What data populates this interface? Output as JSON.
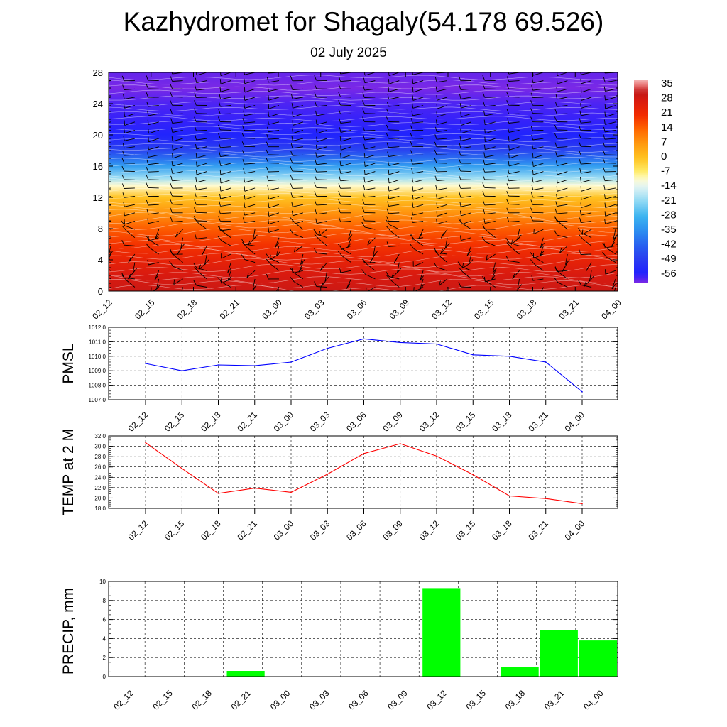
{
  "header": {
    "title": "Kazhydromet for Shagaly(54.178 69.526)",
    "subtitle": "02 July 2025"
  },
  "colors": {
    "pmsl_line": "#0000ff",
    "temp_line": "#ff0000",
    "precip_bar": "#00ff00",
    "grid": "#000000"
  },
  "chart_data": [
    {
      "type": "heatmap",
      "title": "",
      "x_categories": [
        "02_12",
        "02_15",
        "02_18",
        "02_21",
        "03_00",
        "03_03",
        "03_06",
        "03_09",
        "03_12",
        "03_15",
        "03_18",
        "03_21",
        "04_00"
      ],
      "y_ticks": [
        0,
        4,
        8,
        12,
        16,
        20,
        24,
        28
      ],
      "ylim": [
        0,
        28
      ],
      "colorbar_labels": [
        "35",
        "28",
        "21",
        "14",
        "7",
        "0",
        "-7",
        "-14",
        "-21",
        "-28",
        "-35",
        "-42",
        "-49",
        "-56"
      ],
      "colorbar_range": [
        -60,
        38
      ],
      "temperature_profile": {
        "levels": [
          0,
          2,
          4,
          6,
          8,
          10,
          12,
          13.5,
          14.5,
          16,
          17,
          18,
          19,
          20,
          22,
          24,
          26,
          28
        ],
        "values": [
          30,
          28,
          24,
          20,
          15,
          8,
          0,
          -10,
          -20,
          -32,
          -40,
          -47,
          -52,
          -55,
          -57,
          -58,
          -60,
          -59
        ]
      },
      "wind_barbs": true
    },
    {
      "type": "line",
      "ylabel": "PMSL",
      "x": [
        "02_12",
        "02_15",
        "02_18",
        "02_21",
        "03_00",
        "03_03",
        "03_06",
        "03_09",
        "03_12",
        "03_15",
        "03_18",
        "03_21",
        "04_00"
      ],
      "values": [
        1009.5,
        1009.0,
        1009.4,
        1009.35,
        1009.6,
        1010.55,
        1011.2,
        1010.95,
        1010.85,
        1010.1,
        1010.0,
        1009.6,
        1007.55
      ],
      "ylim": [
        1007.0,
        1012.0
      ],
      "y_ticks": [
        "1007.0",
        "1008.0",
        "1009.0",
        "1010.0",
        "1011.0",
        "1012.0"
      ]
    },
    {
      "type": "line",
      "ylabel": "TEMP at 2 M",
      "x": [
        "02_12",
        "02_15",
        "02_18",
        "02_21",
        "03_00",
        "03_03",
        "03_06",
        "03_09",
        "03_12",
        "03_15",
        "03_18",
        "03_21",
        "04_00"
      ],
      "values": [
        30.7,
        25.7,
        20.9,
        21.9,
        21.1,
        24.6,
        28.6,
        30.5,
        28.1,
        24.5,
        20.4,
        19.9,
        18.9
      ],
      "ylim": [
        18.0,
        32.0
      ],
      "y_ticks": [
        "18.0",
        "20.0",
        "22.0",
        "24.0",
        "26.0",
        "28.0",
        "30.0",
        "32.0"
      ]
    },
    {
      "type": "bar",
      "ylabel": "PRECIP, mm",
      "categories": [
        "02_12",
        "02_15",
        "02_18",
        "02_21",
        "03_00",
        "03_03",
        "03_06",
        "03_09",
        "03_12",
        "03_15",
        "03_18",
        "03_21",
        "04_00"
      ],
      "values": [
        0,
        0,
        0,
        0.6,
        0,
        0,
        0,
        0,
        9.3,
        0,
        1.0,
        4.9,
        3.8
      ],
      "ylim": [
        0,
        10
      ],
      "y_ticks": [
        "0",
        "2",
        "4",
        "6",
        "8",
        "10"
      ]
    }
  ]
}
